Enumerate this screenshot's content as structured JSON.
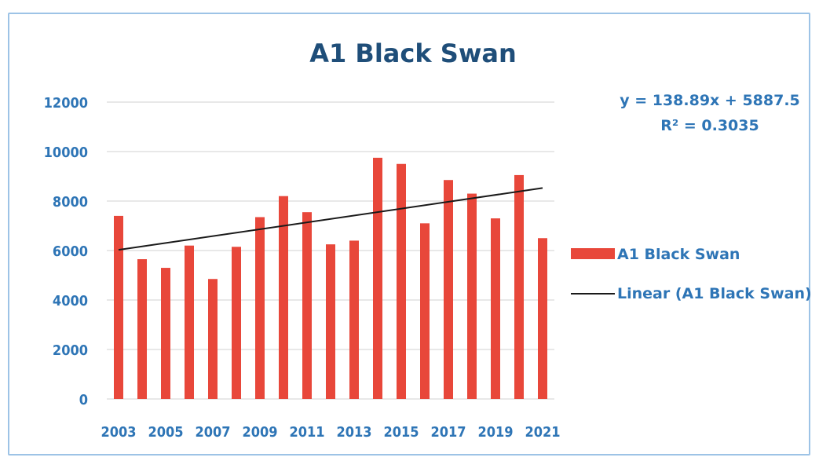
{
  "colors": {
    "bar": "#e8473a",
    "trend": "#1a1a1a",
    "text_title": "#1f4e79",
    "text_axis": "#2e75b6",
    "grid": "#d0d0d0",
    "frame": "#9dc3e6"
  },
  "chart_data": {
    "type": "bar",
    "title": "A1 Black Swan",
    "categories": [
      "2003",
      "2004",
      "2005",
      "2006",
      "2007",
      "2008",
      "2009",
      "2010",
      "2011",
      "2012",
      "2013",
      "2014",
      "2015",
      "2016",
      "2017",
      "2018",
      "2019",
      "2020",
      "2021"
    ],
    "x_tick_labels": [
      "2003",
      "2005",
      "2007",
      "2009",
      "2011",
      "2013",
      "2015",
      "2017",
      "2019",
      "2021"
    ],
    "series": [
      {
        "name": "A1 Black Swan",
        "values": [
          7400,
          5650,
          5300,
          6200,
          4850,
          6150,
          7350,
          8200,
          7550,
          6250,
          6400,
          9750,
          9500,
          7100,
          8850,
          8300,
          7300,
          9050,
          6500
        ]
      }
    ],
    "trendline": {
      "name": "Linear (A1 Black Swan)",
      "slope": 138.89,
      "intercept": 5887.5,
      "equation": "y = 138.89x + 5887.5",
      "r_squared": "R² = 0.3035"
    },
    "y_ticks": [
      0,
      2000,
      4000,
      6000,
      8000,
      10000,
      12000
    ],
    "ylim": [
      0,
      12000
    ],
    "grid": true,
    "legend_position": "right"
  }
}
